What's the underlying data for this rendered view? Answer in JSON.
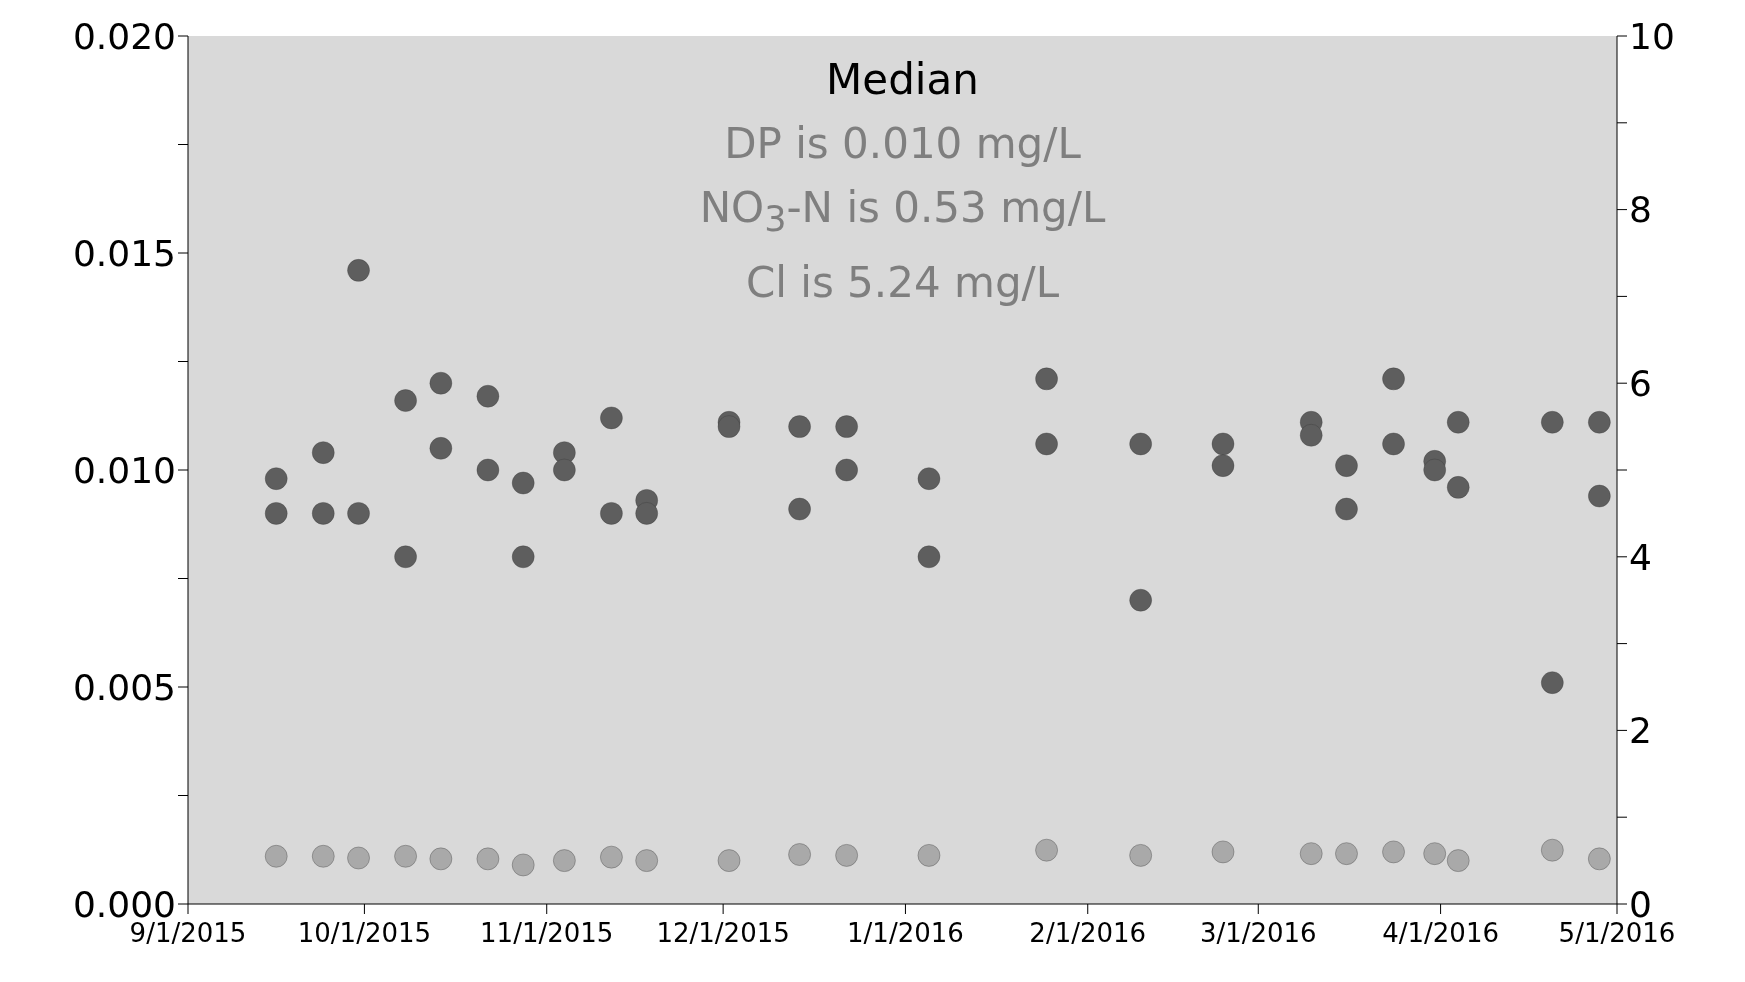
{
  "chart_data": {
    "type": "scatter",
    "annotations": [
      "Median",
      "DP is 0.010 mg/L",
      "NO$_{3}$-N is 0.53 mg/L",
      "Cl is 5.24 mg/L"
    ],
    "x": [
      "2015-09-16",
      "2015-09-16",
      "2015-09-24",
      "2015-09-24",
      "2015-09-30",
      "2015-09-30",
      "2015-10-08",
      "2015-10-08",
      "2015-10-14",
      "2015-10-14",
      "2015-10-22",
      "2015-10-22",
      "2015-10-28",
      "2015-10-28",
      "2015-11-04",
      "2015-11-04",
      "2015-11-12",
      "2015-11-12",
      "2015-11-18",
      "2015-11-18",
      "2015-12-02",
      "2015-12-02",
      "2015-12-14",
      "2015-12-14",
      "2015-12-22",
      "2015-12-22",
      "2016-01-05",
      "2016-01-05",
      "2016-01-25",
      "2016-01-25",
      "2016-02-10",
      "2016-02-10",
      "2016-02-24",
      "2016-02-24",
      "2016-03-10",
      "2016-03-10",
      "2016-03-16",
      "2016-03-16",
      "2016-03-24",
      "2016-03-24",
      "2016-03-31",
      "2016-03-31",
      "2016-04-04",
      "2016-04-04",
      "2016-04-20",
      "2016-04-20",
      "2016-04-28",
      "2016-04-28"
    ],
    "series": [
      {
        "color": "#5e5e5e",
        "values": [
          0.0098,
          0.009,
          0.0104,
          0.009,
          0.0146,
          0.009,
          0.0116,
          0.008,
          0.012,
          0.0105,
          0.0117,
          0.01,
          0.0097,
          0.008,
          0.0104,
          0.01,
          0.0112,
          0.009,
          0.0093,
          0.009,
          0.0111,
          0.011,
          0.011,
          0.0091,
          0.011,
          0.01,
          0.0098,
          0.008,
          0.0121,
          0.0106,
          0.0106,
          0.007,
          0.0106,
          0.0101,
          0.0111,
          0.0108,
          0.0101,
          0.0091,
          0.0121,
          0.0106,
          0.0102,
          0.01,
          0.0111,
          0.0096,
          0.0111,
          0.0051,
          0.0111,
          0.0094
        ]
      },
      {
        "color": "#a9a9a9",
        "axis": "y2",
        "x": [
          "2015-09-16",
          "2015-09-24",
          "2015-09-30",
          "2015-10-08",
          "2015-10-14",
          "2015-10-22",
          "2015-10-28",
          "2015-11-04",
          "2015-11-12",
          "2015-11-18",
          "2015-12-02",
          "2015-12-14",
          "2015-12-22",
          "2016-01-05",
          "2016-01-25",
          "2016-02-10",
          "2016-02-24",
          "2016-03-10",
          "2016-03-16",
          "2016-03-24",
          "2016-03-31",
          "2016-04-04",
          "2016-04-20",
          "2016-04-28"
        ],
        "values": [
          0.55,
          0.55,
          0.53,
          0.55,
          0.52,
          0.52,
          0.45,
          0.5,
          0.54,
          0.5,
          0.5,
          0.57,
          0.56,
          0.56,
          0.62,
          0.56,
          0.6,
          0.58,
          0.58,
          0.6,
          0.58,
          0.5,
          0.62,
          0.52
        ]
      }
    ],
    "xlim": [
      "2015-09-01",
      "2016-05-01"
    ],
    "xticks": [
      {
        "value": "2015-09-01",
        "label": "9/1/2015"
      },
      {
        "value": "2015-10-01",
        "label": "10/1/2015"
      },
      {
        "value": "2015-11-01",
        "label": "11/1/2015"
      },
      {
        "value": "2015-12-01",
        "label": "12/1/2015"
      },
      {
        "value": "2016-01-01",
        "label": "1/1/2016"
      },
      {
        "value": "2016-02-01",
        "label": "2/1/2016"
      },
      {
        "value": "2016-03-01",
        "label": "3/1/2016"
      },
      {
        "value": "2016-04-01",
        "label": "4/1/2016"
      },
      {
        "value": "2016-05-01",
        "label": "5/1/2016"
      }
    ],
    "ylim": [
      0,
      0.02
    ],
    "yticks": [
      {
        "value": 0,
        "label": "0.000"
      },
      {
        "value": 0.0025,
        "label": null
      },
      {
        "value": 0.005,
        "label": "0.005"
      },
      {
        "value": 0.0075,
        "label": null
      },
      {
        "value": 0.01,
        "label": "0.010"
      },
      {
        "value": 0.0125,
        "label": null
      },
      {
        "value": 0.015,
        "label": "0.015"
      },
      {
        "value": 0.0175,
        "label": null
      },
      {
        "value": 0.02,
        "label": "0.020"
      }
    ],
    "y2lim": [
      0,
      10
    ],
    "y2ticks": [
      0,
      {
        "value": 1,
        "label": null
      },
      2,
      {
        "value": 3,
        "label": null
      },
      4,
      {
        "value": 5,
        "label": null
      },
      6,
      {
        "value": 7,
        "label": null
      },
      8,
      {
        "value": 9,
        "label": null
      },
      10
    ],
    "marker": "circle",
    "grid": false
  }
}
